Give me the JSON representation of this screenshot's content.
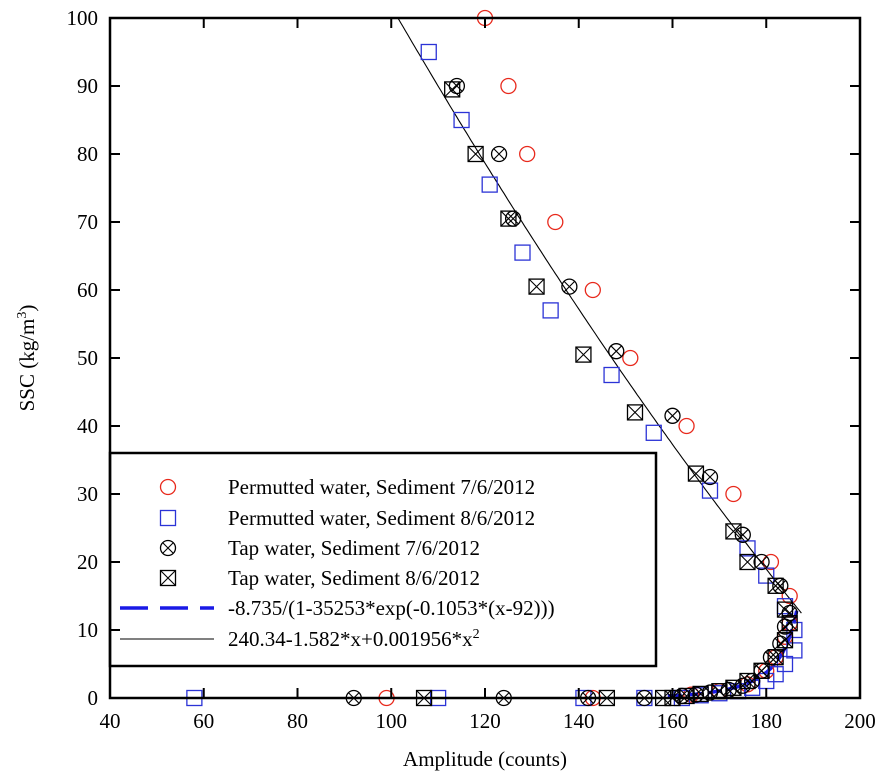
{
  "chart_data": {
    "type": "scatter",
    "title": "",
    "xlabel": "Amplitude (counts)",
    "ylabel_main": "SSC (kg/m",
    "ylabel_sup": "3",
    "ylabel_close": ")",
    "xlim": [
      40,
      200
    ],
    "ylim": [
      0,
      100
    ],
    "x_ticks": [
      40,
      60,
      80,
      100,
      120,
      140,
      160,
      180,
      200
    ],
    "y_ticks": [
      0,
      10,
      20,
      30,
      40,
      50,
      60,
      70,
      80,
      90,
      100
    ],
    "x_tick_labels": [
      "40",
      "60",
      "80",
      "100",
      "120",
      "140",
      "160",
      "180",
      "200"
    ],
    "y_tick_labels": [
      "0",
      "10",
      "20",
      "30",
      "40",
      "50",
      "60",
      "70",
      "80",
      "90",
      "100"
    ],
    "grid": false,
    "legend_position": "bottom-left",
    "series": [
      {
        "name": "Permutted water, Sediment 7/6/2012",
        "marker": "circle",
        "color": "#e8291c",
        "points": [
          [
            120,
            100
          ],
          [
            125,
            90
          ],
          [
            129,
            80
          ],
          [
            135,
            70
          ],
          [
            143,
            60
          ],
          [
            151,
            50
          ],
          [
            163,
            40
          ],
          [
            173,
            30
          ],
          [
            181,
            20
          ],
          [
            185,
            15
          ],
          [
            99,
            0
          ],
          [
            143,
            0
          ],
          [
            164,
            0.5
          ],
          [
            170,
            1
          ],
          [
            176,
            2
          ],
          [
            180,
            4
          ],
          [
            182,
            6
          ],
          [
            184,
            9
          ],
          [
            185,
            11
          ]
        ]
      },
      {
        "name": "Permutted water, Sediment 8/6/2012",
        "marker": "square",
        "color": "#2b33d6",
        "points": [
          [
            108,
            95
          ],
          [
            115,
            85
          ],
          [
            121,
            75.5
          ],
          [
            128,
            65.5
          ],
          [
            134,
            57
          ],
          [
            147,
            47.5
          ],
          [
            156,
            39
          ],
          [
            168,
            30.5
          ],
          [
            176,
            22
          ],
          [
            180,
            18
          ],
          [
            184,
            13.5
          ],
          [
            186,
            10
          ],
          [
            186,
            7
          ],
          [
            184,
            5
          ],
          [
            182,
            3.5
          ],
          [
            180,
            2.5
          ],
          [
            177,
            1.5
          ],
          [
            174,
            1
          ],
          [
            170,
            0.7
          ],
          [
            166,
            0.4
          ],
          [
            58,
            0
          ],
          [
            110,
            0
          ],
          [
            141,
            0
          ],
          [
            154,
            0
          ],
          [
            162,
            0
          ]
        ]
      },
      {
        "name": "Tap water, Sediment 7/6/2012",
        "marker": "circle-x",
        "color": "#000000",
        "points": [
          [
            114,
            90
          ],
          [
            123,
            80
          ],
          [
            126,
            70.5
          ],
          [
            138,
            60.5
          ],
          [
            148,
            51
          ],
          [
            160,
            41.5
          ],
          [
            168,
            32.5
          ],
          [
            175,
            24
          ],
          [
            179,
            20
          ],
          [
            183,
            16.5
          ],
          [
            185,
            12.5
          ],
          [
            184,
            10.5
          ],
          [
            183,
            8
          ],
          [
            181,
            6
          ],
          [
            179,
            4
          ],
          [
            177,
            2.5
          ],
          [
            175,
            1.8
          ],
          [
            172,
            1.2
          ],
          [
            168,
            0.8
          ],
          [
            165,
            0.5
          ],
          [
            162,
            0.3
          ],
          [
            92,
            0
          ],
          [
            124,
            0
          ],
          [
            142,
            0
          ],
          [
            154,
            0
          ]
        ]
      },
      {
        "name": "Tap water, Sediment 8/6/2012",
        "marker": "square-x",
        "color": "#000000",
        "points": [
          [
            113,
            89.5
          ],
          [
            118,
            80
          ],
          [
            125,
            70.5
          ],
          [
            131,
            60.5
          ],
          [
            141,
            50.5
          ],
          [
            152,
            42
          ],
          [
            165,
            33
          ],
          [
            173,
            24.5
          ],
          [
            176,
            20
          ],
          [
            182,
            16.5
          ],
          [
            184,
            13
          ],
          [
            185,
            11
          ],
          [
            184,
            8.5
          ],
          [
            182,
            6
          ],
          [
            179,
            4
          ],
          [
            176,
            2.5
          ],
          [
            173,
            1.5
          ],
          [
            170,
            1
          ],
          [
            166,
            0.6
          ],
          [
            163,
            0.3
          ],
          [
            107,
            0
          ],
          [
            146,
            0
          ],
          [
            158,
            0
          ],
          [
            160,
            0
          ]
        ]
      }
    ],
    "fits": [
      {
        "name": "-8.735/(1-35253*exp(-0.1053*(x-92)))",
        "style": "dashed",
        "color": "#1a1ae6",
        "curve_x": [
          159,
          162,
          165,
          168,
          171,
          174,
          176,
          178,
          180,
          181,
          182,
          183,
          183.5,
          184,
          184.5,
          185,
          185.5,
          186,
          186.5
        ]
      },
      {
        "name": "240.34-1.582*x+0.001956*x",
        "name_sup": "2",
        "style": "solid",
        "color": "#000000",
        "x_range": [
          100,
          187.5
        ]
      }
    ]
  }
}
